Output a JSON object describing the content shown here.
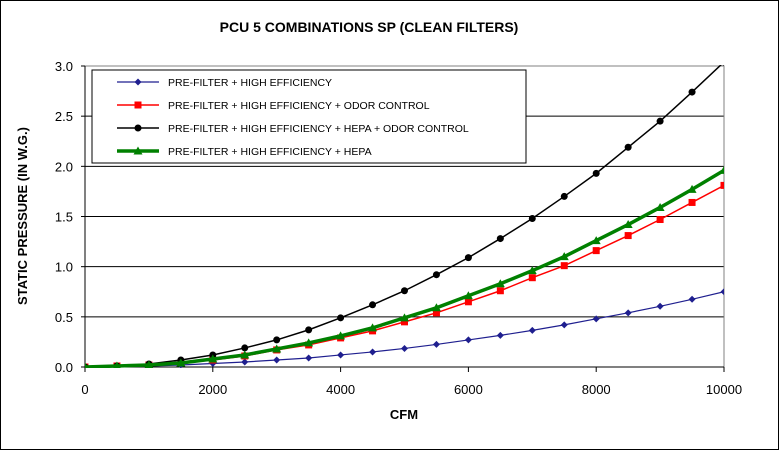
{
  "chart_data": {
    "type": "line",
    "title": "PCU 5 COMBINATIONS SP (CLEAN FILTERS)",
    "xlabel": "CFM",
    "ylabel": "STATIC PRESSURE (IN W.G.)",
    "xlim": [
      0,
      10000
    ],
    "ylim": [
      0,
      3.0
    ],
    "x_ticks": [
      "0",
      "2000",
      "4000",
      "6000",
      "8000",
      "10000"
    ],
    "y_ticks": [
      "0.0",
      "0.5",
      "1.0",
      "1.5",
      "2.0",
      "2.5",
      "3.0"
    ],
    "x_tick_values": [
      0,
      2000,
      4000,
      6000,
      8000,
      10000
    ],
    "y_tick_values": [
      0,
      0.5,
      1.0,
      1.5,
      2.0,
      2.5,
      3.0
    ],
    "grid": "horizontal",
    "legend_position": "top-left",
    "plot_background": "#ffffff",
    "x": [
      0,
      500,
      1000,
      1500,
      2000,
      2500,
      3000,
      3500,
      4000,
      4500,
      5000,
      5500,
      6000,
      6500,
      7000,
      7500,
      8000,
      8500,
      9000,
      9500,
      10000
    ],
    "series": [
      {
        "name": "PRE-FILTER + HIGH EFFICIENCY",
        "color": "#1f1f8f",
        "marker": "diamond",
        "values": [
          0,
          0.005,
          0.01,
          0.02,
          0.035,
          0.05,
          0.07,
          0.09,
          0.12,
          0.15,
          0.185,
          0.225,
          0.27,
          0.315,
          0.365,
          0.42,
          0.48,
          0.54,
          0.605,
          0.675,
          0.75
        ]
      },
      {
        "name": "PRE-FILTER + HIGH EFFICIENCY + ODOR CONTROL",
        "color": "#ff0000",
        "marker": "square",
        "values": [
          0,
          0.01,
          0.02,
          0.04,
          0.07,
          0.11,
          0.17,
          0.22,
          0.29,
          0.36,
          0.45,
          0.54,
          0.65,
          0.76,
          0.89,
          1.01,
          1.16,
          1.31,
          1.47,
          1.64,
          1.81
        ]
      },
      {
        "name": "PRE-FILTER + HIGH EFFICIENCY + HEPA + ODOR CONTROL",
        "color": "#000000",
        "marker": "circle",
        "values": [
          0,
          0.01,
          0.03,
          0.07,
          0.12,
          0.19,
          0.27,
          0.37,
          0.49,
          0.62,
          0.76,
          0.92,
          1.09,
          1.28,
          1.48,
          1.7,
          1.93,
          2.19,
          2.45,
          2.74,
          3.04
        ]
      },
      {
        "name": "PRE-FILTER + HIGH EFFICIENCY + HEPA",
        "color": "#008000",
        "marker": "triangle",
        "values": [
          0,
          0.01,
          0.02,
          0.04,
          0.08,
          0.12,
          0.18,
          0.24,
          0.31,
          0.39,
          0.49,
          0.59,
          0.71,
          0.83,
          0.96,
          1.1,
          1.26,
          1.42,
          1.59,
          1.77,
          1.96
        ]
      }
    ]
  }
}
